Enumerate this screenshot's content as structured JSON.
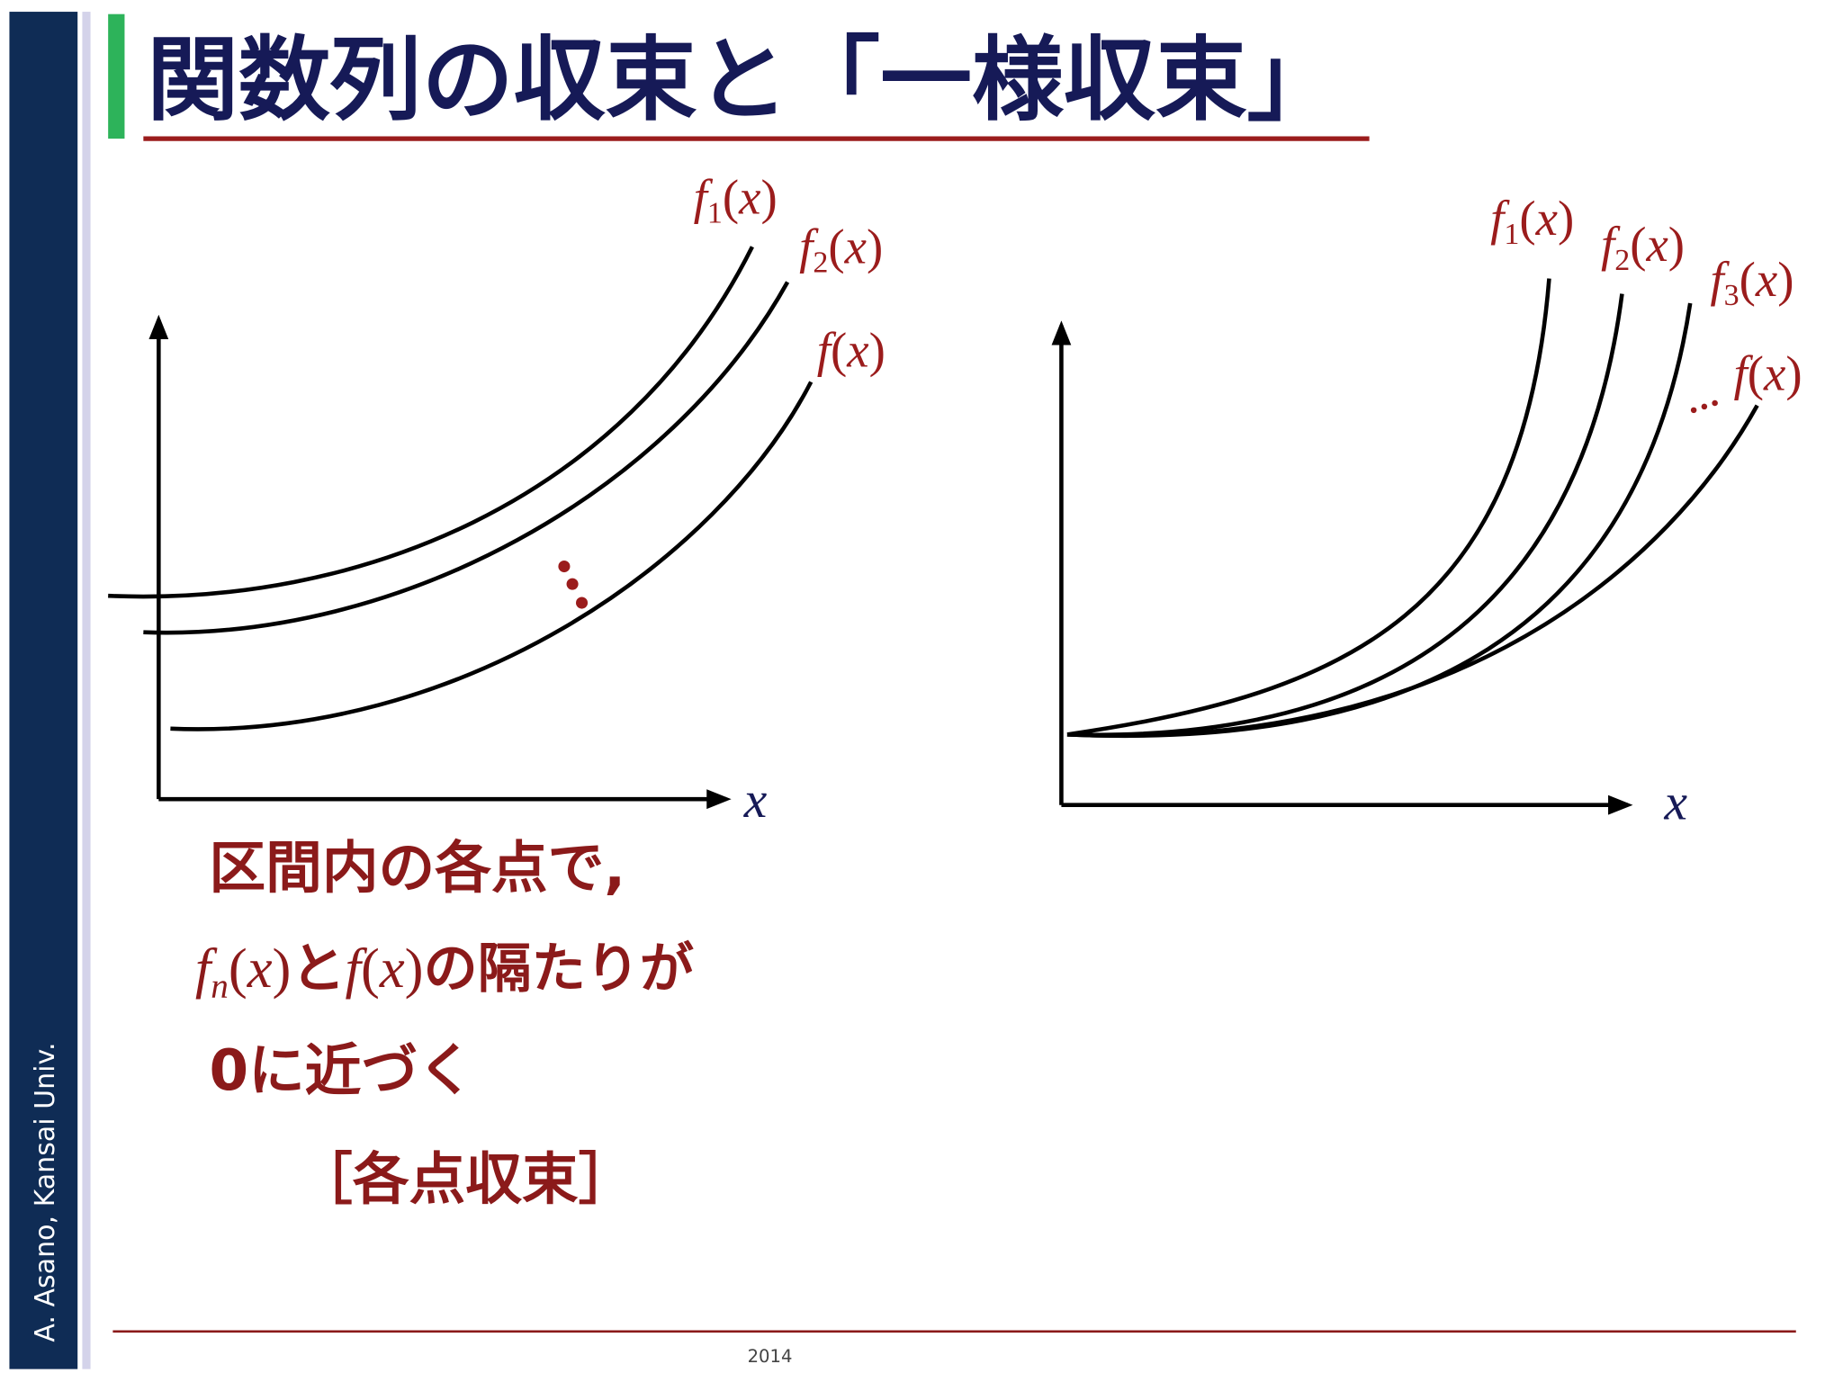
{
  "sidebar": {
    "author": "A. Asano, Kansai Univ."
  },
  "header": {
    "title": "関数列の収束と「一様収束」"
  },
  "left_figure": {
    "labels": [
      {
        "f": "f",
        "sub": "1",
        "open": "(",
        "var": "x",
        "close": ")"
      },
      {
        "f": "f",
        "sub": "2",
        "open": "(",
        "var": "x",
        "close": ")"
      },
      {
        "f": "f",
        "open": "(",
        "var": "x",
        "close": ")"
      }
    ],
    "x_axis_label": "x"
  },
  "right_figure": {
    "labels": [
      {
        "f": "f",
        "sub": "1",
        "open": "(",
        "var": "x",
        "close": ")"
      },
      {
        "f": "f",
        "sub": "2",
        "open": "(",
        "var": "x",
        "close": ")"
      },
      {
        "f": "f",
        "sub": "3",
        "open": "(",
        "var": "x",
        "close": ")"
      },
      {
        "f": "f",
        "open": "(",
        "var": "x",
        "close": ")"
      }
    ],
    "x_axis_label": "x"
  },
  "note": {
    "lines": [
      "区間内の各点で,",
      [
        {
          "text": "f",
          "style": "italic"
        },
        {
          "text": "n",
          "style": "sub"
        },
        {
          "text": "(",
          "style": "serif"
        },
        {
          "text": "x",
          "style": "italic"
        },
        {
          "text": ")",
          "style": "serif"
        },
        {
          "text": "と",
          "style": "bold"
        },
        {
          "text": "f",
          "style": "italic"
        },
        {
          "text": "(",
          "style": "serif"
        },
        {
          "text": "x",
          "style": "italic"
        },
        {
          "text": ")",
          "style": "serif"
        },
        {
          "text": "の隔たりが",
          "style": "bold"
        }
      ],
      "0に近づく",
      "［各点収束］"
    ]
  },
  "footer": {
    "year": "2014"
  }
}
